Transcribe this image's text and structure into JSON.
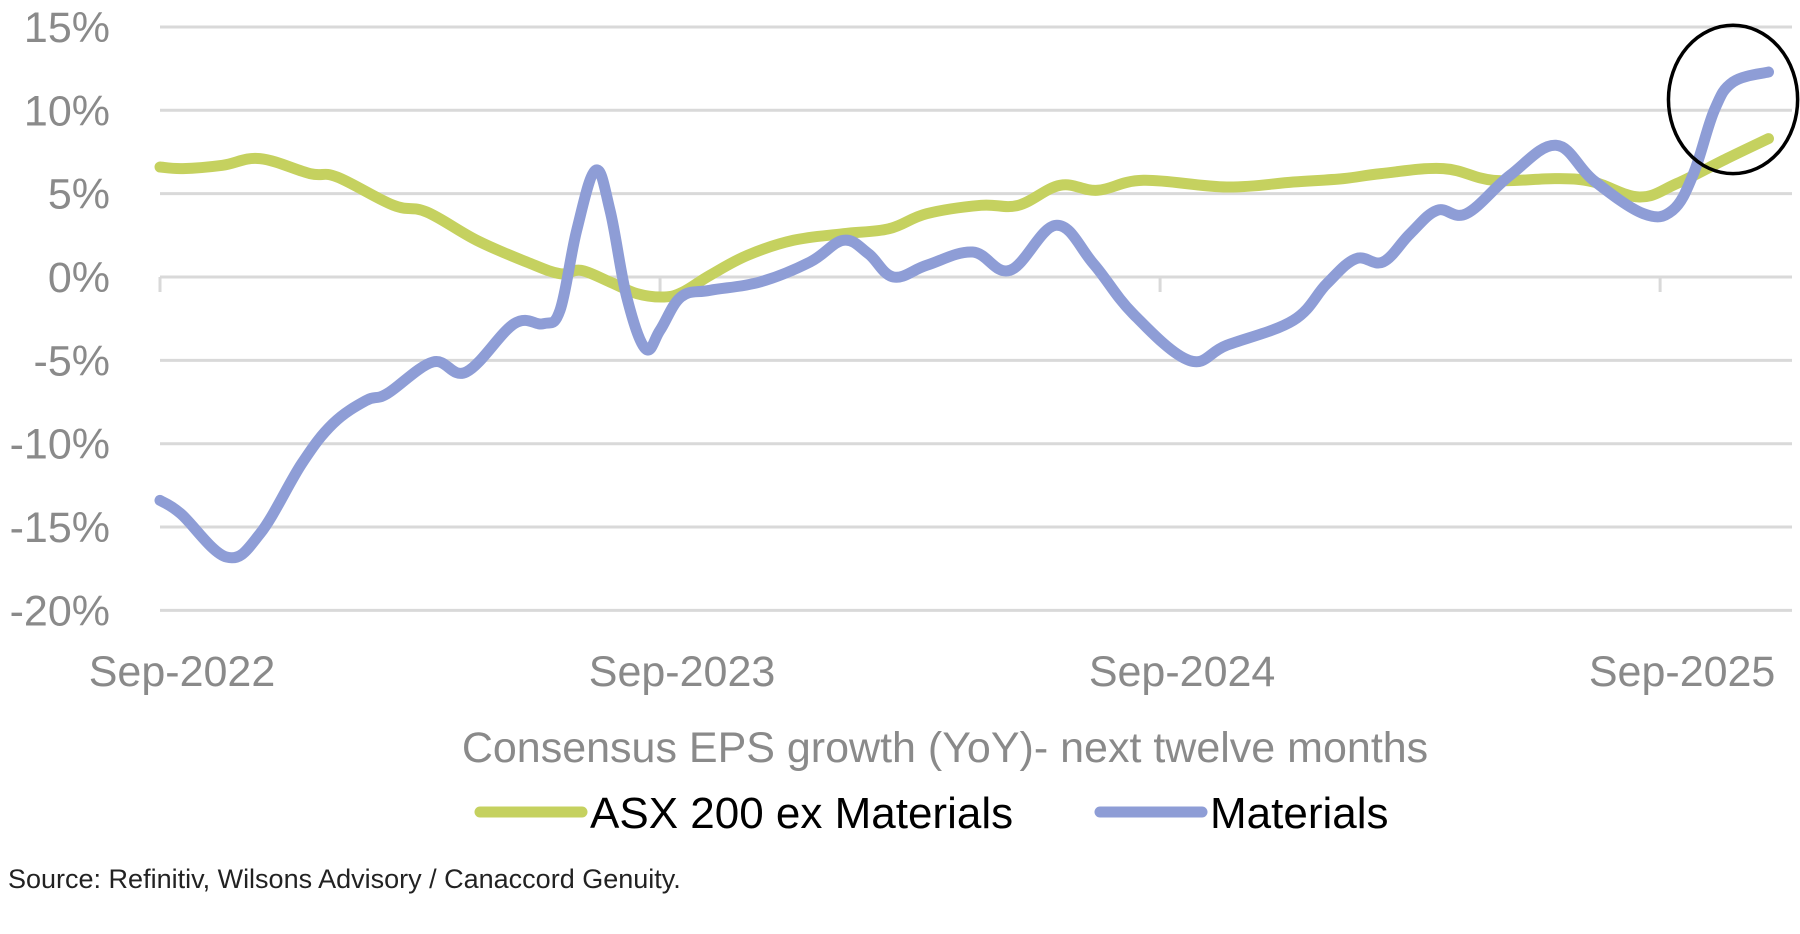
{
  "chart_data": {
    "type": "line",
    "title": "Consensus EPS growth (YoY)- next twelve months",
    "xlabel": "",
    "ylabel": "",
    "x_unit": "months since Sep-2022",
    "x_range": [
      0,
      38.6
    ],
    "ylim": [
      -20,
      15
    ],
    "y_ticks": [
      15,
      10,
      5,
      0,
      -5,
      -10,
      -15,
      -20
    ],
    "y_tick_labels": [
      "15%",
      "10%",
      "5%",
      "0%",
      "-5%",
      "-10%",
      "-15%",
      "-20%"
    ],
    "x_ticks": [
      0,
      12,
      24,
      36
    ],
    "x_tick_labels": [
      "Sep-2022",
      "Sep-2023",
      "Sep-2024",
      "Sep-2025"
    ],
    "grid": true,
    "legend_position": "bottom",
    "series": [
      {
        "name": "ASX 200 ex Materials",
        "color": "#c5d15f",
        "x": [
          0,
          0.55,
          1.5,
          2.4,
          3.6,
          4.25,
          5.6,
          6.4,
          7.6,
          8.8,
          9.6,
          10.1,
          10.8,
          11.45,
          12.1,
          12.55,
          13.2,
          14.1,
          15.2,
          16.4,
          17.5,
          18.4,
          19.7,
          20.6,
          21.6,
          22.5,
          23.6,
          25.6,
          27.2,
          28.4,
          29.3,
          30.8,
          32.0,
          33.5,
          34.4,
          35.5,
          36.4,
          37.6,
          38.6
        ],
        "values": [
          6.6,
          6.5,
          6.7,
          7.1,
          6.2,
          6.0,
          4.3,
          3.9,
          2.2,
          0.9,
          0.2,
          0.4,
          -0.3,
          -1.0,
          -1.2,
          -0.9,
          0.1,
          1.3,
          2.2,
          2.6,
          2.9,
          3.8,
          4.3,
          4.3,
          5.5,
          5.2,
          5.8,
          5.4,
          5.7,
          5.9,
          6.2,
          6.5,
          5.8,
          5.9,
          5.7,
          4.8,
          5.6,
          7.1,
          8.3
        ]
      },
      {
        "name": "Materials",
        "color": "#8e9dd6",
        "x": [
          0,
          0.5,
          1.6,
          2.4,
          3.4,
          4.15,
          4.95,
          5.45,
          6.55,
          7.35,
          8.5,
          9.2,
          9.6,
          10.0,
          10.45,
          10.8,
          11.2,
          11.65,
          12.0,
          12.5,
          13.2,
          14.4,
          15.6,
          16.4,
          17.0,
          17.6,
          18.4,
          19.5,
          20.4,
          21.5,
          22.4,
          23.35,
          24.7,
          25.6,
          27.2,
          28.0,
          28.7,
          29.35,
          30.0,
          30.65,
          31.35,
          32.4,
          33.5,
          34.4,
          35.6,
          36.3,
          36.8,
          37.3,
          37.75,
          38.6
        ],
        "values": [
          -13.4,
          -14.2,
          -16.8,
          -15.4,
          -11.2,
          -8.8,
          -7.4,
          -7.0,
          -5.1,
          -5.7,
          -2.8,
          -2.8,
          -2.0,
          2.8,
          6.4,
          4.0,
          -1.2,
          -4.3,
          -3.2,
          -1.2,
          -0.8,
          -0.3,
          0.9,
          2.2,
          1.4,
          0.0,
          0.7,
          1.5,
          0.4,
          3.1,
          0.8,
          -2.2,
          -5.0,
          -4.1,
          -2.6,
          -0.4,
          1.1,
          0.9,
          2.6,
          4.0,
          3.8,
          6.1,
          7.9,
          5.8,
          3.8,
          4.0,
          6.2,
          10.0,
          11.7,
          12.3
        ]
      }
    ],
    "annotations": [
      {
        "type": "ellipse-highlight",
        "x_range": [
          36.2,
          39.3
        ],
        "y_range": [
          6.2,
          15.1
        ],
        "color": "#000000"
      }
    ]
  },
  "source_note": "Source: Refinitiv, Wilsons Advisory / Canaccord Genuity."
}
